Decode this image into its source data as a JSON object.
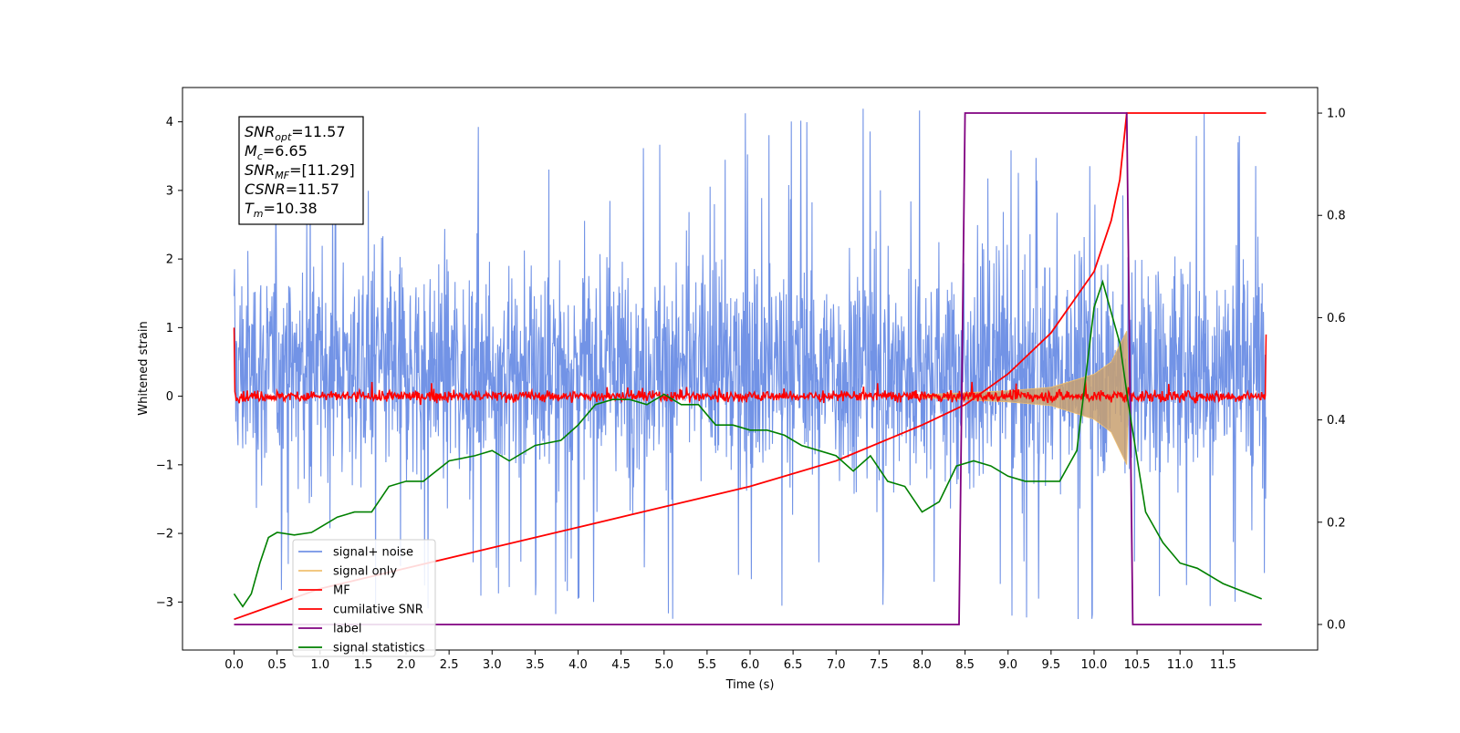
{
  "chart_data": {
    "type": "line",
    "title": "",
    "xlabel": "Time (s)",
    "ylabel": "Whitened strain",
    "ylabel_right": "",
    "xlim": [
      -0.6,
      12.6
    ],
    "ylim": [
      -3.7,
      4.5
    ],
    "ylim_right": [
      -0.05,
      1.05
    ],
    "x_ticks": [
      "0.0",
      "0.5",
      "1.0",
      "1.5",
      "2.0",
      "2.5",
      "3.0",
      "3.5",
      "4.0",
      "4.5",
      "5.0",
      "5.5",
      "6.0",
      "6.5",
      "7.0",
      "7.5",
      "8.0",
      "8.5",
      "9.0",
      "9.5",
      "10.0",
      "10.5",
      "11.0",
      "11.5"
    ],
    "y_ticks_left": [
      "−3",
      "−2",
      "−1",
      "0",
      "1",
      "2",
      "3",
      "4"
    ],
    "y_ticks_right": [
      "0.0",
      "0.2",
      "0.4",
      "0.6",
      "0.8",
      "1.0"
    ],
    "grid": false,
    "legend_position": "lower-left",
    "annotation": {
      "lines": [
        {
          "label": "SNR",
          "sub": "opt",
          "value": "=11.57"
        },
        {
          "label": "M",
          "sub": "c",
          "value": "=6.65"
        },
        {
          "label": "SNR",
          "sub": "MF",
          "value": "=[11.29]"
        },
        {
          "label": "CSNR",
          "sub": "",
          "value": "=11.57"
        },
        {
          "label": "T",
          "sub": "m",
          "value": "=10.38"
        }
      ]
    },
    "series": [
      {
        "name": "signal+ noise",
        "color": "#7293e6",
        "axis": "left",
        "kind": "noise-band",
        "x_range": [
          0.0,
          12.0
        ],
        "typical_envelope": [
          -1.6,
          2.4
        ],
        "extreme_range": [
          -3.25,
          4.2
        ]
      },
      {
        "name": "signal only",
        "color": "#f0c070",
        "axis": "left",
        "kind": "chirp-envelope",
        "points": [
          [
            8.0,
            0.02
          ],
          [
            8.5,
            0.05
          ],
          [
            9.0,
            0.08
          ],
          [
            9.5,
            0.13
          ],
          [
            10.0,
            0.32
          ],
          [
            10.2,
            0.5
          ],
          [
            10.38,
            0.95
          ],
          [
            10.4,
            0.0
          ]
        ]
      },
      {
        "name": "MF",
        "color": "#ff0000",
        "axis": "left",
        "kind": "noisy-baseline",
        "x_range": [
          0.0,
          12.0
        ],
        "baseline": 0.0,
        "spread": 0.08,
        "end_values": [
          1.0,
          0.9
        ]
      },
      {
        "name": "cumilative SNR",
        "color": "#ff0000",
        "axis": "right",
        "points": [
          [
            0.0,
            0.01
          ],
          [
            0.5,
            0.04
          ],
          [
            1.0,
            0.07
          ],
          [
            1.5,
            0.09
          ],
          [
            2.0,
            0.11
          ],
          [
            3.0,
            0.15
          ],
          [
            4.0,
            0.19
          ],
          [
            5.0,
            0.23
          ],
          [
            6.0,
            0.27
          ],
          [
            7.0,
            0.32
          ],
          [
            8.0,
            0.39
          ],
          [
            8.5,
            0.43
          ],
          [
            9.0,
            0.49
          ],
          [
            9.5,
            0.57
          ],
          [
            10.0,
            0.69
          ],
          [
            10.2,
            0.79
          ],
          [
            10.3,
            0.87
          ],
          [
            10.38,
            1.0
          ],
          [
            12.0,
            1.0
          ]
        ]
      },
      {
        "name": "label",
        "color": "#800080",
        "axis": "right",
        "points": [
          [
            0.0,
            0.0
          ],
          [
            8.43,
            0.0
          ],
          [
            8.5,
            1.0
          ],
          [
            10.38,
            1.0
          ],
          [
            10.45,
            0.0
          ],
          [
            11.95,
            0.0
          ]
        ]
      },
      {
        "name": "signal statistics",
        "color": "#008000",
        "axis": "right",
        "points": [
          [
            0.0,
            0.06
          ],
          [
            0.1,
            0.035
          ],
          [
            0.2,
            0.06
          ],
          [
            0.3,
            0.12
          ],
          [
            0.4,
            0.17
          ],
          [
            0.5,
            0.18
          ],
          [
            0.7,
            0.175
          ],
          [
            0.9,
            0.18
          ],
          [
            1.0,
            0.19
          ],
          [
            1.2,
            0.21
          ],
          [
            1.4,
            0.22
          ],
          [
            1.6,
            0.22
          ],
          [
            1.8,
            0.27
          ],
          [
            2.0,
            0.28
          ],
          [
            2.2,
            0.28
          ],
          [
            2.5,
            0.32
          ],
          [
            2.8,
            0.33
          ],
          [
            3.0,
            0.34
          ],
          [
            3.2,
            0.32
          ],
          [
            3.5,
            0.35
          ],
          [
            3.8,
            0.36
          ],
          [
            4.0,
            0.39
          ],
          [
            4.2,
            0.43
          ],
          [
            4.4,
            0.44
          ],
          [
            4.6,
            0.44
          ],
          [
            4.8,
            0.43
          ],
          [
            5.0,
            0.45
          ],
          [
            5.2,
            0.43
          ],
          [
            5.4,
            0.43
          ],
          [
            5.6,
            0.39
          ],
          [
            5.8,
            0.39
          ],
          [
            6.0,
            0.38
          ],
          [
            6.2,
            0.38
          ],
          [
            6.4,
            0.37
          ],
          [
            6.6,
            0.35
          ],
          [
            6.8,
            0.34
          ],
          [
            7.0,
            0.33
          ],
          [
            7.2,
            0.3
          ],
          [
            7.4,
            0.33
          ],
          [
            7.6,
            0.28
          ],
          [
            7.8,
            0.27
          ],
          [
            8.0,
            0.22
          ],
          [
            8.2,
            0.24
          ],
          [
            8.4,
            0.31
          ],
          [
            8.6,
            0.32
          ],
          [
            8.8,
            0.31
          ],
          [
            9.0,
            0.29
          ],
          [
            9.2,
            0.28
          ],
          [
            9.4,
            0.28
          ],
          [
            9.6,
            0.28
          ],
          [
            9.8,
            0.34
          ],
          [
            10.0,
            0.62
          ],
          [
            10.1,
            0.67
          ],
          [
            10.2,
            0.61
          ],
          [
            10.3,
            0.55
          ],
          [
            10.4,
            0.43
          ],
          [
            10.6,
            0.22
          ],
          [
            10.8,
            0.16
          ],
          [
            11.0,
            0.12
          ],
          [
            11.2,
            0.11
          ],
          [
            11.5,
            0.08
          ],
          [
            11.8,
            0.06
          ],
          [
            11.95,
            0.05
          ]
        ]
      }
    ]
  }
}
